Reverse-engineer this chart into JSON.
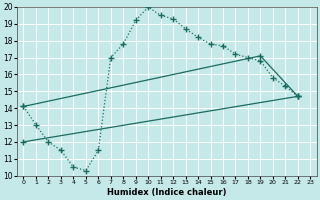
{
  "xlabel": "Humidex (Indice chaleur)",
  "xlim": [
    -0.5,
    23.5
  ],
  "ylim": [
    10,
    20
  ],
  "xticks": [
    0,
    1,
    2,
    3,
    4,
    5,
    6,
    7,
    8,
    9,
    10,
    11,
    12,
    13,
    14,
    15,
    16,
    17,
    18,
    19,
    20,
    21,
    22,
    23
  ],
  "yticks": [
    10,
    11,
    12,
    13,
    14,
    15,
    16,
    17,
    18,
    19,
    20
  ],
  "background_color": "#c5e8e8",
  "grid_color": "#b0d8d8",
  "line_color": "#1a6b60",
  "line1_x": [
    0,
    1,
    2,
    3,
    4,
    5,
    6,
    7,
    8,
    9,
    10,
    11,
    12,
    13,
    14,
    15,
    16,
    17,
    18,
    19,
    20,
    21,
    22
  ],
  "line1_y": [
    14.1,
    13.0,
    12.0,
    11.5,
    10.5,
    10.3,
    11.5,
    17.0,
    17.8,
    19.2,
    20.0,
    19.5,
    19.3,
    18.7,
    18.2,
    17.8,
    17.7,
    17.2,
    17.0,
    16.8,
    15.8,
    15.3,
    14.7
  ],
  "line2_x": [
    0,
    19,
    22
  ],
  "line2_y": [
    14.1,
    17.1,
    14.7
  ],
  "line3_x": [
    0,
    22
  ],
  "line3_y": [
    12.0,
    14.7
  ]
}
